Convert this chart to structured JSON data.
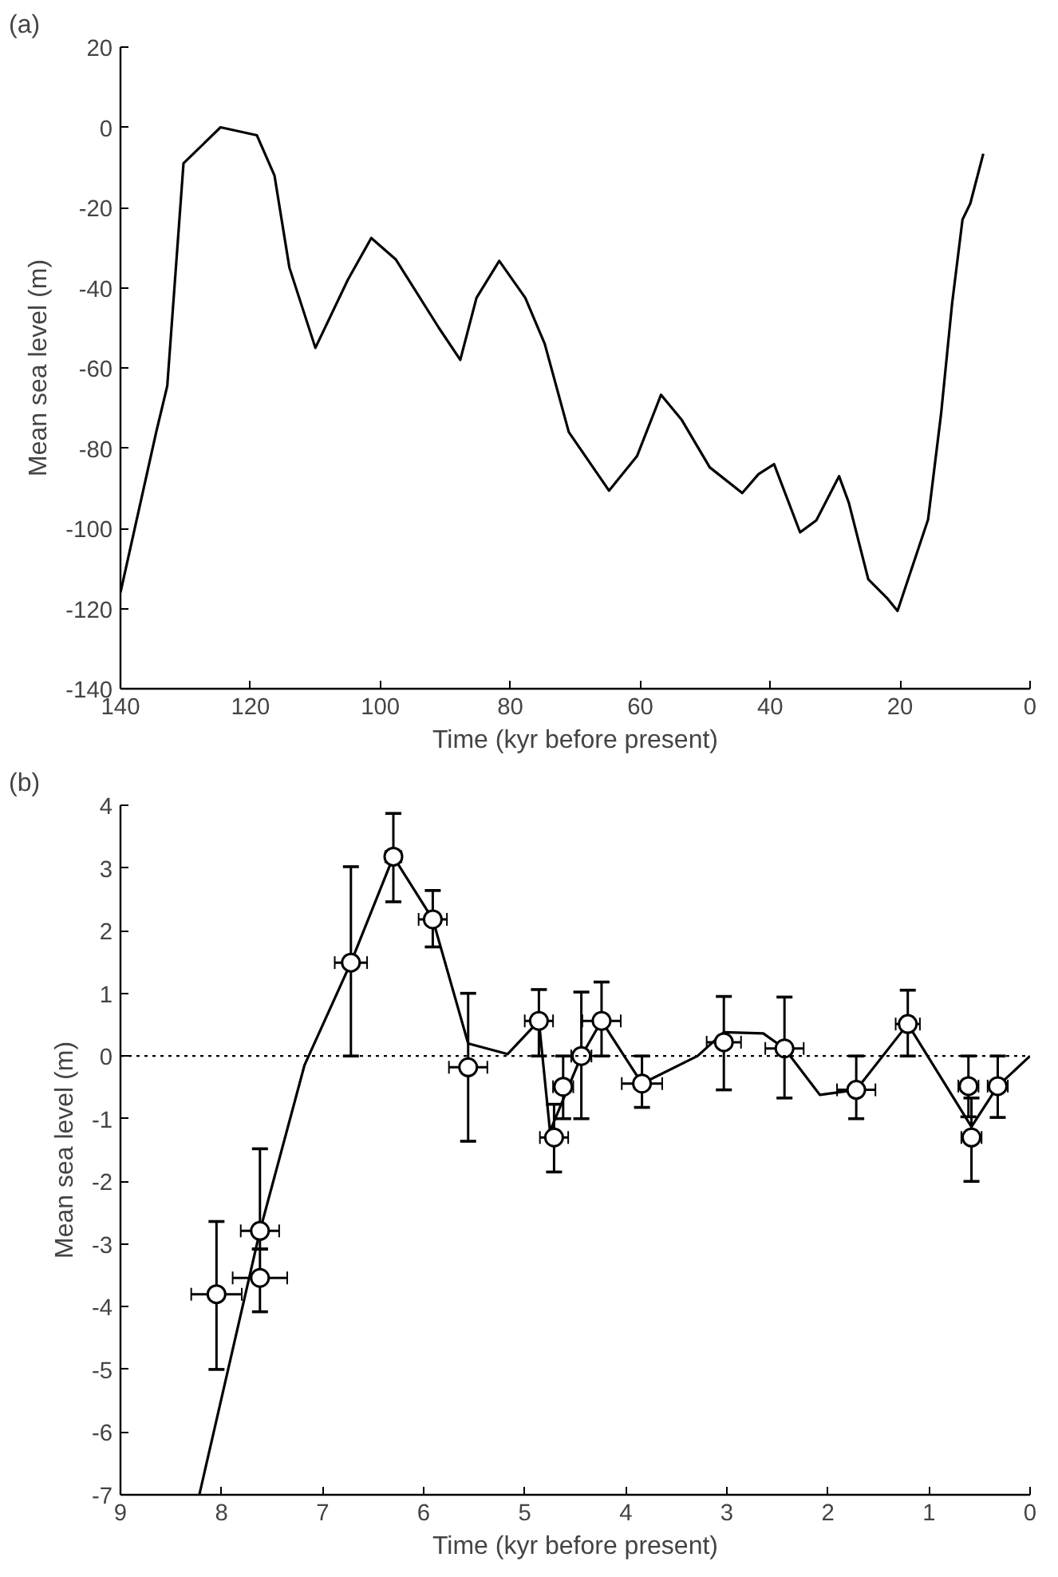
{
  "chart_data": [
    {
      "type": "line",
      "title": "(a)",
      "xlabel": "Time (kyr before present)",
      "ylabel": "Mean sea level (m)",
      "xlim": [
        140,
        0
      ],
      "ylim": [
        -140,
        20
      ],
      "xticks": [
        140,
        120,
        100,
        80,
        60,
        40,
        20,
        0
      ],
      "yticks": [
        -140,
        -120,
        -100,
        -80,
        -60,
        -40,
        -20,
        0,
        20
      ],
      "grid": false,
      "series": [
        {
          "color": "#000000",
          "x": [
            140,
            134.5,
            132.8,
            130.3,
            124.6,
            119,
            116.3,
            114,
            110,
            105,
            101.4,
            97.6,
            91,
            87.7,
            85.2,
            81.7,
            77.7,
            74.7,
            71,
            64.8,
            60.5,
            56.8,
            53.6,
            49.3,
            44.3,
            41.8,
            39.4,
            35.4,
            32.9,
            29.4,
            27.9,
            24.9,
            21.9,
            20.4,
            15.7,
            13.7,
            12,
            10.4,
            9.2,
            7.2
          ],
          "values": [
            -116,
            -76,
            -64.5,
            -9,
            0,
            -2,
            -12,
            -35,
            -55,
            -38,
            -27.6,
            -33,
            -50,
            -58,
            -42.5,
            -33.3,
            -42.5,
            -54,
            -76,
            -90.6,
            -82,
            -66.7,
            -73,
            -84.8,
            -91.2,
            -86.5,
            -84,
            -101,
            -98,
            -87,
            -93.6,
            -112.7,
            -117.6,
            -120.6,
            -97.8,
            -71.5,
            -43.9,
            -23,
            -19,
            -6.6
          ]
        }
      ]
    },
    {
      "type": "scatter",
      "title": "(b)",
      "xlabel": "Time (kyr before present)",
      "ylabel": "Mean sea level (m)",
      "xlim": [
        9,
        0
      ],
      "ylim": [
        -7,
        4
      ],
      "xticks": [
        9,
        8,
        7,
        6,
        5,
        4,
        3,
        2,
        1,
        0
      ],
      "yticks": [
        -7,
        -6,
        -5,
        -4,
        -3,
        -2,
        -1,
        0,
        1,
        2,
        3,
        4
      ],
      "grid": false,
      "ref_lines": [
        {
          "axis": "y",
          "value": 0,
          "label": null,
          "color": "#000000",
          "line_style": "dotted"
        }
      ],
      "series": [
        {
          "type": "line",
          "color": "#000000",
          "x": [
            8.22,
            7.62,
            7.18,
            6.72,
            6.3,
            5.91,
            5.56,
            5.17,
            4.86,
            4.75,
            4.44,
            4.24,
            3.84,
            3.29,
            3.03,
            2.64,
            2.43,
            2.08,
            1.72,
            1.21,
            0.58,
            0.32,
            0
          ],
          "values": [
            -7,
            -2.79,
            -0.15,
            1.49,
            3.18,
            2.18,
            0.2,
            0.03,
            0.56,
            -1.2,
            0.0,
            0.56,
            -0.44,
            0,
            0.38,
            0.36,
            0.12,
            -0.62,
            -0.54,
            0.51,
            -1.13,
            -0.48,
            0
          ]
        },
        {
          "type": "scatter",
          "marker": "circle",
          "color": "#000000",
          "x": [
            8.05,
            7.62,
            7.62,
            6.72,
            6.3,
            5.91,
            5.56,
            4.86,
            4.71,
            4.62,
            4.44,
            4.24,
            3.84,
            3.03,
            2.43,
            1.72,
            1.21,
            0.61,
            0.58,
            0.32
          ],
          "values": [
            -3.8,
            -2.79,
            -3.54,
            1.49,
            3.18,
            2.18,
            -0.18,
            0.56,
            -1.3,
            -0.49,
            0.0,
            0.56,
            -0.44,
            0.22,
            0.12,
            -0.54,
            0.51,
            -0.48,
            -1.3,
            -0.48
          ],
          "errors": [
            [
              -5.0,
              -2.64
            ],
            [
              -3.08,
              -1.48
            ],
            [
              -4.08,
              -3.08
            ],
            [
              0,
              3.02
            ],
            [
              2.46,
              3.87
            ],
            [
              1.74,
              2.64
            ],
            [
              -1.36,
              1.0
            ],
            [
              0,
              1.06
            ],
            [
              -1.85,
              -0.77
            ],
            [
              -1.0,
              0
            ],
            [
              -1.0,
              1.02
            ],
            [
              0,
              1.18
            ],
            [
              -0.82,
              0
            ],
            [
              -0.54,
              0.95
            ],
            [
              -0.67,
              0.94
            ],
            [
              -1.0,
              0
            ],
            [
              0,
              1.05
            ],
            [
              -0.97,
              0
            ],
            [
              -2.0,
              -0.67
            ],
            [
              -0.98,
              0
            ]
          ],
          "xerrors": [
            0.25,
            0.19,
            0.27,
            0.16,
            0.08,
            0.14,
            0.19,
            0.14,
            0.14,
            0.1,
            0.1,
            0.19,
            0.2,
            0.17,
            0.19,
            0.19,
            0.12,
            0.1,
            0.1,
            0.1
          ]
        }
      ]
    }
  ]
}
